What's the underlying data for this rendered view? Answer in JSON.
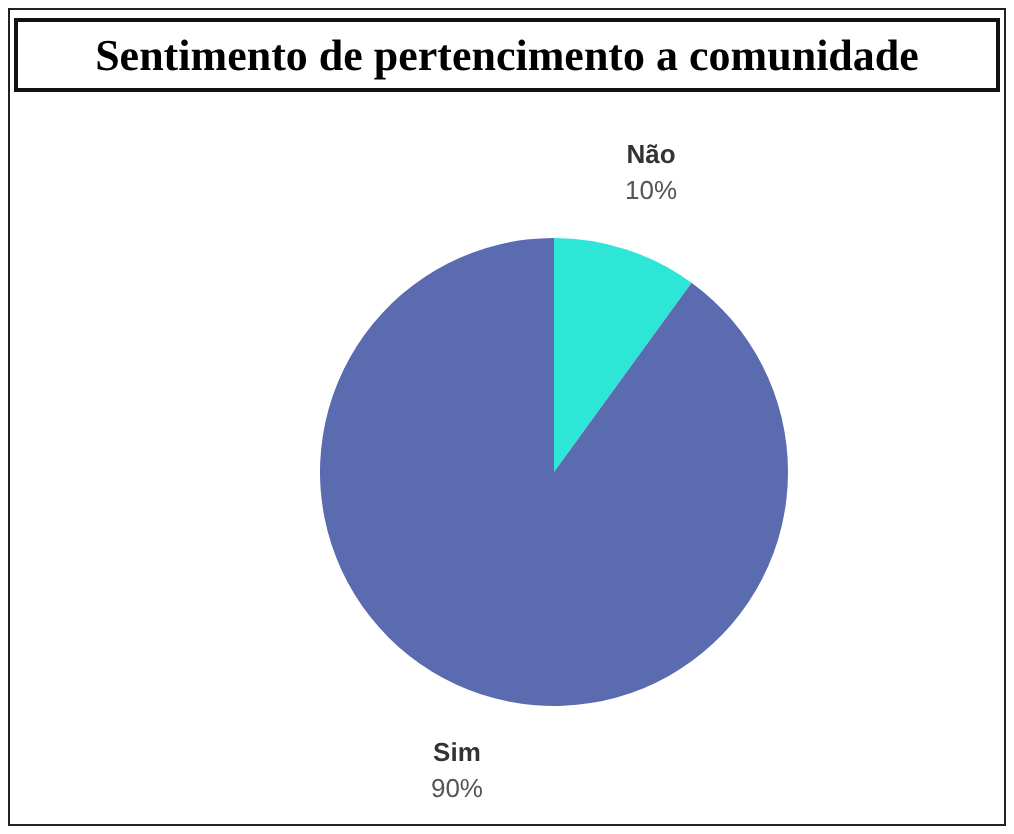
{
  "chart_data": {
    "type": "pie",
    "title": "Sentimento de pertencimento a comunidade",
    "categories": [
      "Não",
      "Sim"
    ],
    "values": [
      10,
      90
    ],
    "colors": [
      "#2ee6d6",
      "#5a6bb0"
    ],
    "value_labels": [
      "10%",
      "90%"
    ]
  }
}
